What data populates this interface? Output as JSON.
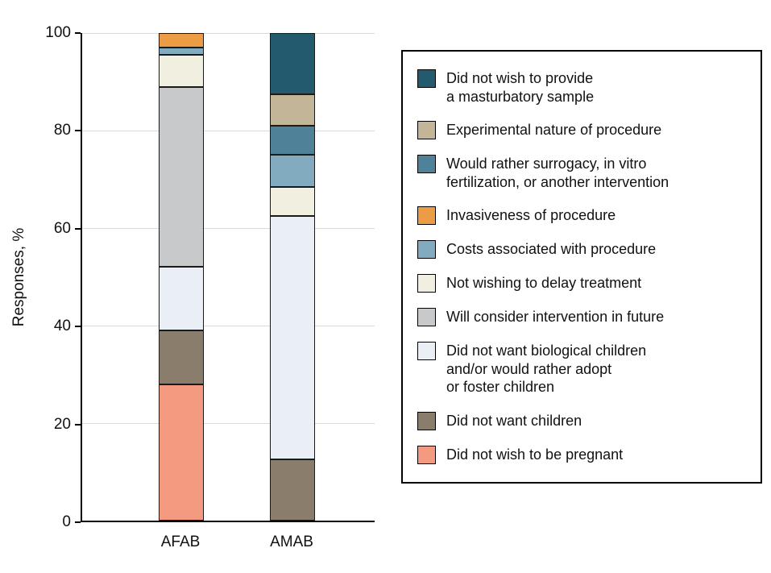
{
  "chart_data": {
    "type": "bar",
    "stacked": true,
    "title": "",
    "xlabel": "",
    "ylabel": "Responses, %",
    "ylim": [
      0,
      100
    ],
    "yticks": [
      0,
      20,
      40,
      60,
      80,
      100
    ],
    "grid": true,
    "legend_position": "right",
    "categories": [
      "AFAB",
      "AMAB"
    ],
    "series": [
      {
        "name": "Did not wish to be pregnant",
        "color": "#f49a80",
        "values": [
          28,
          0
        ]
      },
      {
        "name": "Did not want children",
        "color": "#8a7d6b",
        "values": [
          11,
          12.5
        ]
      },
      {
        "name": "Did not want biological children and/or would rather adopt or foster children",
        "color": "#e9eff4",
        "values": [
          13,
          50
        ]
      },
      {
        "name": "Will consider intervention in future",
        "color": "#c7c9ca",
        "values": [
          37,
          0
        ]
      },
      {
        "name": "Not wishing to delay treatment",
        "color": "#f1efe0",
        "values": [
          6.5,
          6
        ]
      },
      {
        "name": "Costs associated with procedure",
        "color": "#82abc0",
        "values": [
          1.5,
          6.5
        ]
      },
      {
        "name": "Invasiveness of procedure",
        "color": "#eb9c44",
        "values": [
          3,
          0
        ]
      },
      {
        "name": "Would rather surrogacy, in vitro fertilization, or another intervention",
        "color": "#4f8198",
        "values": [
          0,
          6
        ]
      },
      {
        "name": "Experimental nature of procedure",
        "color": "#c3b598",
        "values": [
          0,
          6.5
        ]
      },
      {
        "name": "Did not wish to provide a masturbatory sample",
        "color": "#235a6e",
        "values": [
          0,
          12.5
        ]
      }
    ]
  },
  "legend": {
    "items": [
      {
        "label": "Did not wish to provide\na masturbatory sample",
        "color": "#235a6e"
      },
      {
        "label": "Experimental nature of procedure",
        "color": "#c3b598"
      },
      {
        "label": "Would rather surrogacy, in vitro\nfertilization, or another intervention",
        "color": "#4f8198"
      },
      {
        "label": "Invasiveness of procedure",
        "color": "#eb9c44"
      },
      {
        "label": "Costs associated with procedure",
        "color": "#82abc0"
      },
      {
        "label": "Not wishing to delay treatment",
        "color": "#f1efe0"
      },
      {
        "label": "Will consider intervention in future",
        "color": "#c7c9ca"
      },
      {
        "label": "Did not want biological children\nand/or would rather adopt\nor foster children",
        "color": "#e9eff4"
      },
      {
        "label": "Did not want children",
        "color": "#8a7d6b"
      },
      {
        "label": "Did not wish to be pregnant",
        "color": "#f49a80"
      }
    ]
  },
  "colors": {
    "axis": "#000000",
    "gridline": "#dadada",
    "background": "#ffffff"
  }
}
